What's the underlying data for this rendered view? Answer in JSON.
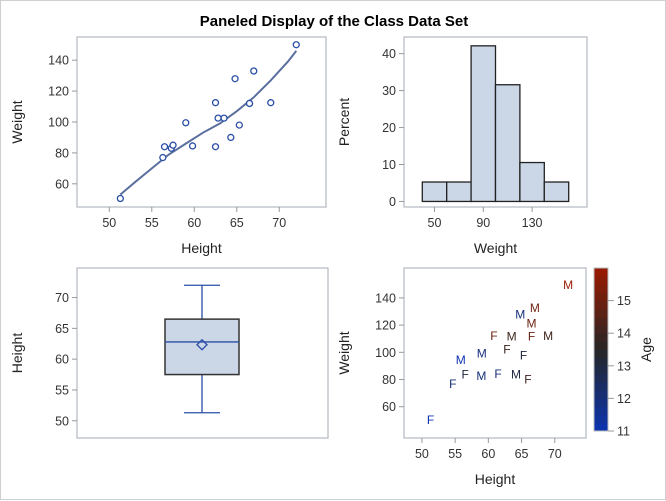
{
  "title": "Paneled Display of the Class Data Set",
  "colors": {
    "marker": "#2a4fa6",
    "fit": "#5b6f9e",
    "fill": "#cbd6e7",
    "frame": "#b8bcc2",
    "age_low": "#0b34b0",
    "age_mid": "#262626",
    "age_high": "#9a1a00"
  },
  "chart_data": [
    {
      "type": "scatter",
      "xlabel": "Height",
      "ylabel": "Weight",
      "xlim": [
        46.2,
        75.5
      ],
      "ylim": [
        45,
        155
      ],
      "xticks": [
        50,
        55,
        60,
        65,
        70
      ],
      "yticks": [
        60,
        80,
        100,
        120,
        140
      ],
      "points": [
        [
          69.0,
          112.5
        ],
        [
          56.5,
          84.0
        ],
        [
          65.3,
          98.0
        ],
        [
          62.8,
          102.5
        ],
        [
          63.5,
          102.5
        ],
        [
          57.3,
          83.0
        ],
        [
          59.8,
          84.5
        ],
        [
          62.5,
          112.5
        ],
        [
          62.5,
          84.0
        ],
        [
          59.0,
          99.5
        ],
        [
          51.3,
          50.5
        ],
        [
          64.3,
          90.0
        ],
        [
          56.3,
          77.0
        ],
        [
          66.5,
          112.0
        ],
        [
          72.0,
          150.0
        ],
        [
          64.8,
          128.0
        ],
        [
          67.0,
          133.0
        ],
        [
          57.5,
          85.0
        ],
        [
          66.5,
          112.0
        ]
      ],
      "fit": [
        [
          51.3,
          53
        ],
        [
          53,
          61
        ],
        [
          55,
          70
        ],
        [
          57,
          79
        ],
        [
          59,
          86
        ],
        [
          61,
          93
        ],
        [
          63,
          99
        ],
        [
          65,
          107
        ],
        [
          67,
          116
        ],
        [
          69,
          127
        ],
        [
          71,
          139
        ],
        [
          72,
          146
        ]
      ]
    },
    {
      "type": "bar",
      "xlabel": "Weight",
      "ylabel": "Percent",
      "xlim": [
        25,
        175
      ],
      "ylim": [
        -1.5,
        44.5
      ],
      "xticks": [
        50,
        90,
        130
      ],
      "yticks": [
        0,
        10,
        20,
        30,
        40
      ],
      "bins": [
        [
          40,
          60
        ],
        [
          60,
          80
        ],
        [
          80,
          100
        ],
        [
          100,
          120
        ],
        [
          120,
          140
        ],
        [
          140,
          160
        ]
      ],
      "values": [
        5.26,
        5.26,
        42.11,
        31.58,
        10.53,
        5.26
      ]
    },
    {
      "type": "box",
      "ylabel": "Height",
      "ylim": [
        47.2,
        74.8
      ],
      "yticks": [
        50,
        55,
        60,
        65,
        70
      ],
      "min": 51.3,
      "q1": 57.5,
      "median": 62.8,
      "q3": 66.5,
      "max": 72.0,
      "mean": 62.34
    },
    {
      "type": "scatter",
      "xlabel": "Height",
      "ylabel": "Weight",
      "colorbar_label": "Age",
      "xlim": [
        47.3,
        74.7
      ],
      "ylim": [
        37,
        162
      ],
      "xticks": [
        50,
        55,
        60,
        65,
        70
      ],
      "yticks": [
        60,
        80,
        100,
        120,
        140
      ],
      "colorbar_range": [
        11,
        16
      ],
      "colorbar_ticks": [
        11,
        12,
        13,
        14,
        15
      ],
      "points": [
        {
          "x": 69.0,
          "y": 112.5,
          "label": "M",
          "age": 14
        },
        {
          "x": 56.5,
          "y": 84.0,
          "label": "F",
          "age": 13
        },
        {
          "x": 65.3,
          "y": 98.0,
          "label": "F",
          "age": 13
        },
        {
          "x": 62.8,
          "y": 102.5,
          "label": "F",
          "age": 14
        },
        {
          "x": 63.5,
          "y": 102.5,
          "label": "M",
          "age": 14
        },
        {
          "x": 57.3,
          "y": 83.0,
          "label": "M",
          "age": 12
        },
        {
          "x": 59.8,
          "y": 84.5,
          "label": "F",
          "age": 12
        },
        {
          "x": 62.5,
          "y": 112.5,
          "label": "F",
          "age": 15
        },
        {
          "x": 62.5,
          "y": 84.0,
          "label": "M",
          "age": 13
        },
        {
          "x": 59.0,
          "y": 99.5,
          "label": "M",
          "age": 12
        },
        {
          "x": 51.3,
          "y": 50.5,
          "label": "F",
          "age": 11
        },
        {
          "x": 64.3,
          "y": 90.0,
          "label": "F",
          "age": 14
        },
        {
          "x": 56.3,
          "y": 77.0,
          "label": "F",
          "age": 12
        },
        {
          "x": 66.5,
          "y": 112.0,
          "label": "F",
          "age": 15
        },
        {
          "x": 72.0,
          "y": 150.0,
          "label": "M",
          "age": 16
        },
        {
          "x": 64.8,
          "y": 128.0,
          "label": "M",
          "age": 12
        },
        {
          "x": 67.0,
          "y": 133.0,
          "label": "M",
          "age": 15
        },
        {
          "x": 57.5,
          "y": 85.0,
          "label": "M",
          "age": 11
        },
        {
          "x": 66.5,
          "y": 112.0,
          "label": "M",
          "age": 15
        }
      ]
    }
  ]
}
